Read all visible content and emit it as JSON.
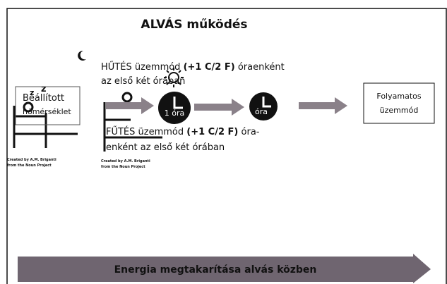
{
  "title": "ALVÁS működés",
  "cooling": {
    "mode": "HŰTÉS",
    "word": "üzemmód",
    "rate": "(+1 C/2 F)",
    "line1_end": "óraenként",
    "line2": "az első két órában"
  },
  "set_temp": {
    "line1": "Beállított",
    "line2": "hőmérséklet"
  },
  "clock1": "1 óra",
  "clock2": "óra",
  "heating": {
    "mode": "FŰTÉS",
    "word": "üzemmód",
    "rate": "(+1 C/2 F)",
    "line1_end": "óra-",
    "line2": "enként az első két órában"
  },
  "credits": [
    {
      "line1": "Created by A.M. Briganti",
      "line2": "from the Noun Project"
    },
    {
      "line1": "Created by A.M. Briganti",
      "line2": "from the Noun Project"
    }
  ],
  "continuous": {
    "line1": "Folyamatos",
    "line2": "üzemmód"
  },
  "footer": "Energia megtakarítása alvás közben"
}
